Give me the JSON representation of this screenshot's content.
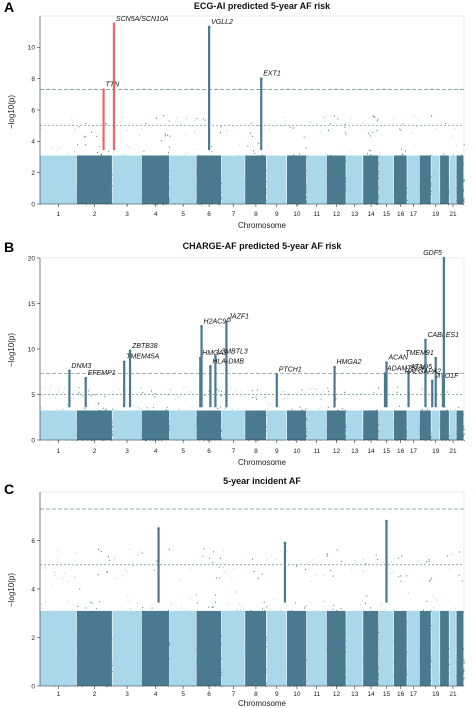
{
  "chart_data": [
    {
      "type": "scatter",
      "subtype": "manhattan",
      "panel": "A",
      "title": "ECG-AI predicted 5-year AF risk",
      "xlabel": "Chromosome",
      "ylabel": "−log10(p)",
      "ylim": [
        0,
        12
      ],
      "yticks": [
        0,
        2,
        4,
        6,
        8,
        10
      ],
      "chromosome_labels": [
        "1",
        "2",
        "3",
        "4",
        "5",
        "6",
        "7",
        "8",
        "9",
        "10",
        "11",
        "12",
        "13",
        "14",
        "15",
        "16",
        "17",
        "19",
        "21"
      ],
      "thresholds": [
        7.3,
        5
      ],
      "baseline_max": 4.3,
      "peaks": [
        {
          "gene": "TTN",
          "chrom": 2,
          "pos": 0.75,
          "p": 7.3,
          "highlight": true
        },
        {
          "gene": "SCN5A/SCN10A",
          "chrom": 3,
          "pos": 0.05,
          "p": 11.5,
          "highlight": true
        },
        {
          "gene": "VGLL2",
          "chrom": 6,
          "pos": 0.5,
          "p": 11.3,
          "highlight": false
        },
        {
          "gene": "EXT1",
          "chrom": 8,
          "pos": 0.75,
          "p": 8.0,
          "highlight": false
        }
      ],
      "colors": {
        "light": "#a8d8ea",
        "dark": "#4a7a90",
        "highlight": "#e86a5e",
        "line": "#6f8f9c"
      }
    },
    {
      "type": "scatter",
      "subtype": "manhattan",
      "panel": "B",
      "title": "CHARGE-AF predicted 5-year AF risk",
      "xlabel": "Chromosome",
      "ylabel": "−log10(p)",
      "ylim": [
        0,
        20
      ],
      "yticks": [
        0,
        5,
        10,
        15,
        20
      ],
      "chromosome_labels": [
        "1",
        "2",
        "3",
        "4",
        "5",
        "6",
        "7",
        "8",
        "9",
        "10",
        "11",
        "12",
        "13",
        "14",
        "15",
        "16",
        "17",
        "19",
        "21"
      ],
      "thresholds": [
        7.3,
        5
      ],
      "baseline_max": 4.5,
      "peaks": [
        {
          "gene": "DNM3",
          "chrom": 1,
          "pos": 0.8,
          "p": 7.6
        },
        {
          "gene": "EFEMP1",
          "chrom": 2,
          "pos": 0.25,
          "p": 6.8
        },
        {
          "gene": "TMEM45A",
          "chrom": 3,
          "pos": 0.4,
          "p": 8.6
        },
        {
          "gene": "ZBTB38",
          "chrom": 3,
          "pos": 0.6,
          "p": 9.8
        },
        {
          "gene": "HMGA1",
          "chrom": 6,
          "pos": 0.15,
          "p": 9.0
        },
        {
          "gene": "H2AC9P",
          "chrom": 6,
          "pos": 0.2,
          "p": 12.5
        },
        {
          "gene": "JAZF1",
          "chrom": 7,
          "pos": 0.2,
          "p": 13.0
        },
        {
          "gene": "L3MBTL3",
          "chrom": 6,
          "pos": 0.75,
          "p": 9.2
        },
        {
          "gene": "HLA-DMB",
          "chrom": 6,
          "pos": 0.55,
          "p": 8.1
        },
        {
          "gene": "PTCH1",
          "chrom": 9,
          "pos": 0.5,
          "p": 7.2
        },
        {
          "gene": "HMGA2",
          "chrom": 12,
          "pos": 0.4,
          "p": 8.0
        },
        {
          "gene": "ADAMTSL3",
          "chrom": 15,
          "pos": 0.4,
          "p": 7.3
        },
        {
          "gene": "ACAN",
          "chrom": 15,
          "pos": 0.5,
          "p": 8.5
        },
        {
          "gene": "ATAD5",
          "chrom": 17,
          "pos": 0.1,
          "p": 7.5
        },
        {
          "gene": "CABLES1",
          "chrom": 18,
          "pos": 0.5,
          "p": 11.0
        },
        {
          "gene": "MYO1F",
          "chrom": 19,
          "pos": 0.1,
          "p": 6.5
        },
        {
          "gene": "GDF5",
          "chrom": 20,
          "pos": 0.4,
          "p": 20.0
        },
        {
          "gene": "TMEM91",
          "chrom": 19,
          "pos": 0.5,
          "p": 9.0
        },
        {
          "gene": "RALGAPA2",
          "chrom": 20,
          "pos": 0.3,
          "p": 7.0
        }
      ],
      "colors": {
        "light": "#a8d8ea",
        "dark": "#4a7a90",
        "highlight": "#e86a5e",
        "line": "#6f8f9c"
      }
    },
    {
      "type": "scatter",
      "subtype": "manhattan",
      "panel": "C",
      "title": "5-year incident AF",
      "xlabel": "Chromosome",
      "ylabel": "−log10(p)",
      "ylim": [
        0,
        8
      ],
      "yticks": [
        0,
        2,
        4,
        6
      ],
      "chromosome_labels": [
        "1",
        "2",
        "3",
        "4",
        "5",
        "6",
        "7",
        "8",
        "9",
        "10",
        "11",
        "12",
        "13",
        "14",
        "15",
        "16",
        "17",
        "19",
        "21"
      ],
      "thresholds": [
        7.3,
        5
      ],
      "baseline_max": 4.3,
      "peaks": [
        {
          "gene": "",
          "chrom": 9,
          "pos": 0.9,
          "p": 5.9
        },
        {
          "gene": "",
          "chrom": 15,
          "pos": 0.5,
          "p": 6.8
        },
        {
          "gene": "",
          "chrom": 4,
          "pos": 0.6,
          "p": 6.5
        }
      ],
      "colors": {
        "light": "#a8d8ea",
        "dark": "#4a7a90",
        "highlight": "#e86a5e",
        "line": "#6f8f9c"
      }
    }
  ]
}
